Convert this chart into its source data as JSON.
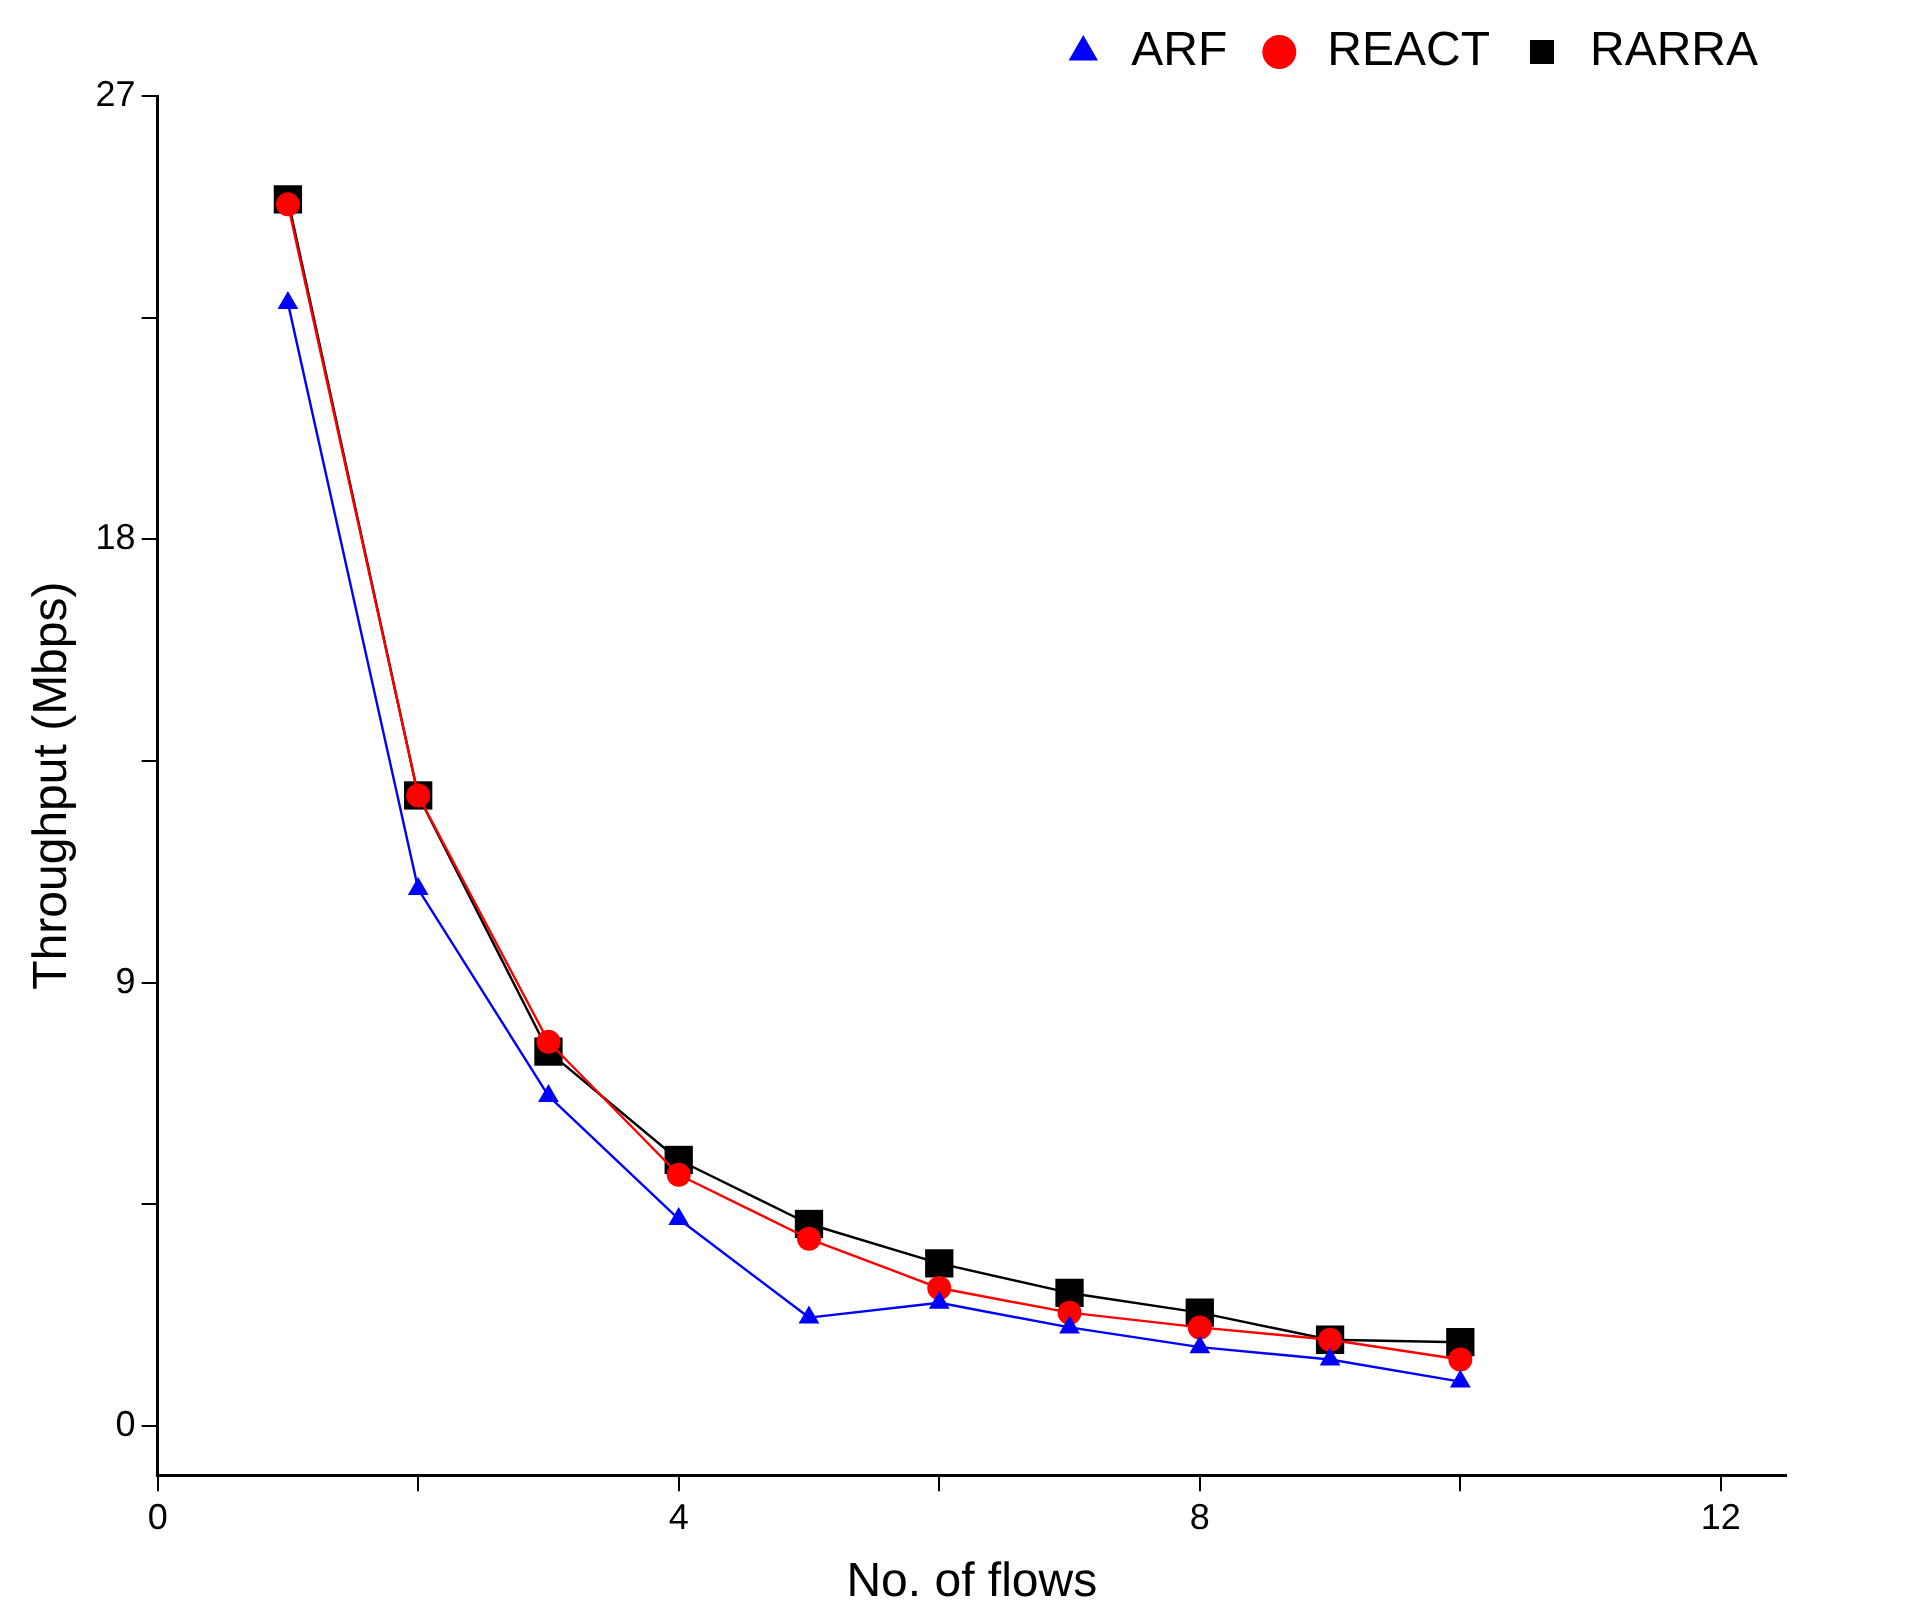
{
  "chart_data": {
    "type": "line",
    "xlabel": "No. of flows",
    "ylabel": "Throughput (Mbps)",
    "x": [
      1,
      2,
      3,
      4,
      5,
      6,
      7,
      8,
      9,
      10
    ],
    "series": [
      {
        "name": "RARRA",
        "color": "#000000",
        "marker": "square",
        "values": [
          24.9,
          12.8,
          7.6,
          5.4,
          4.1,
          3.3,
          2.7,
          2.3,
          1.75,
          1.7
        ]
      },
      {
        "name": "REACT",
        "color": "#ff0000",
        "marker": "circle",
        "values": [
          24.8,
          12.8,
          7.8,
          5.1,
          3.8,
          2.8,
          2.3,
          2.0,
          1.75,
          1.35
        ]
      },
      {
        "name": "ARF",
        "color": "#0000ff",
        "marker": "triangle",
        "values": [
          22.8,
          10.9,
          6.7,
          4.2,
          2.2,
          2.5,
          2.0,
          1.6,
          1.35,
          0.9
        ]
      }
    ],
    "xlim": [
      0,
      12.5
    ],
    "xticks": [
      0,
      {
        "value": 2,
        "label": null
      },
      4,
      {
        "value": 6,
        "label": null
      },
      8,
      {
        "value": 10,
        "label": null
      },
      12
    ],
    "ylim": [
      -1,
      27
    ],
    "yticks": [
      0,
      {
        "value": 4.5,
        "label": null
      },
      9,
      {
        "value": 13.5,
        "label": null
      },
      18,
      {
        "value": 22.5,
        "label": null
      },
      27
    ],
    "grid": false,
    "legend": "top right",
    "line_style": "solid"
  }
}
